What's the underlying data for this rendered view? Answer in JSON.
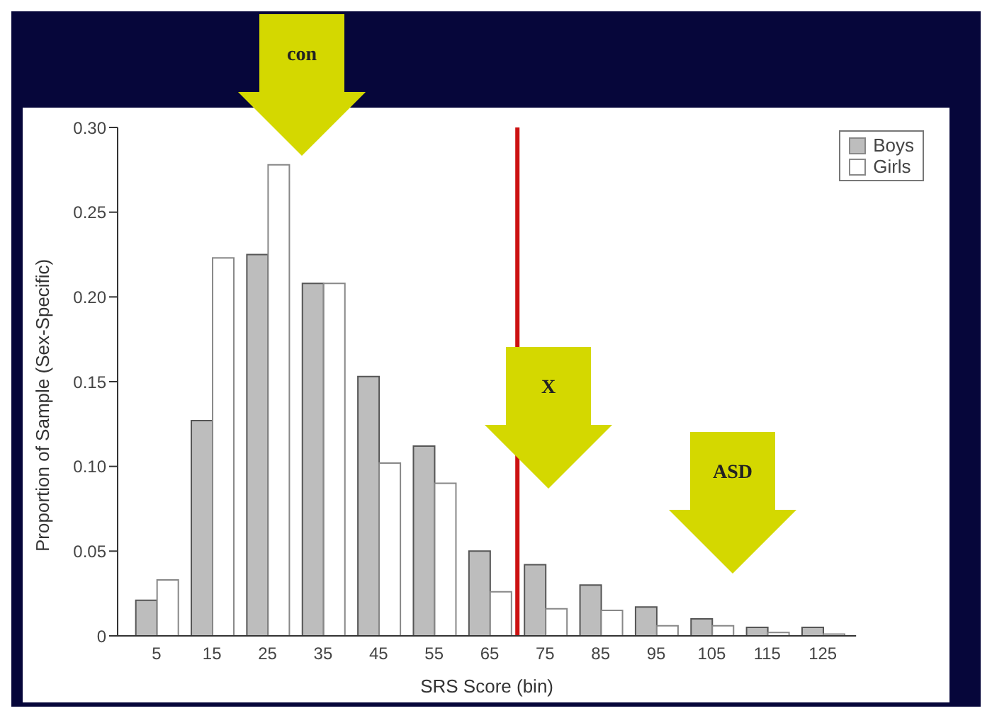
{
  "chart_data": {
    "type": "bar",
    "xlabel": "SRS Score (bin)",
    "ylabel": "Proportion of Sample (Sex-Specific)",
    "x": [
      5,
      15,
      25,
      35,
      45,
      55,
      65,
      75,
      85,
      95,
      105,
      115,
      125
    ],
    "series": [
      {
        "name": "Boys",
        "color": "#bdbdbd",
        "values": [
          0.021,
          0.127,
          0.225,
          0.208,
          0.153,
          0.112,
          0.05,
          0.042,
          0.03,
          0.017,
          0.01,
          0.005,
          0.005
        ]
      },
      {
        "name": "Girls",
        "color": "#ffffff",
        "values": [
          0.033,
          0.223,
          0.278,
          0.208,
          0.102,
          0.09,
          0.026,
          0.016,
          0.015,
          0.006,
          0.006,
          0.002,
          0.001
        ]
      }
    ],
    "xlim": [
      -2,
      131
    ],
    "xticks": [
      5,
      15,
      25,
      35,
      45,
      55,
      65,
      75,
      85,
      95,
      105,
      115,
      125
    ],
    "ylim": [
      0,
      0.3
    ],
    "yticks": [
      0,
      {
        "value": 0.05,
        "label": "0.05"
      },
      {
        "value": 0.1,
        "label": "0.10"
      },
      {
        "value": 0.15,
        "label": "0.15"
      },
      {
        "value": 0.2,
        "label": "0.20"
      },
      {
        "value": 0.25,
        "label": "0.25"
      },
      {
        "value": 0.3,
        "label": "0.30"
      }
    ],
    "ref_lines": [
      {
        "axis": "x",
        "value": 70,
        "color": "#cc1111"
      }
    ],
    "annotations": [
      "con",
      "X",
      "ASD"
    ],
    "legend": "top right",
    "grid": false
  }
}
